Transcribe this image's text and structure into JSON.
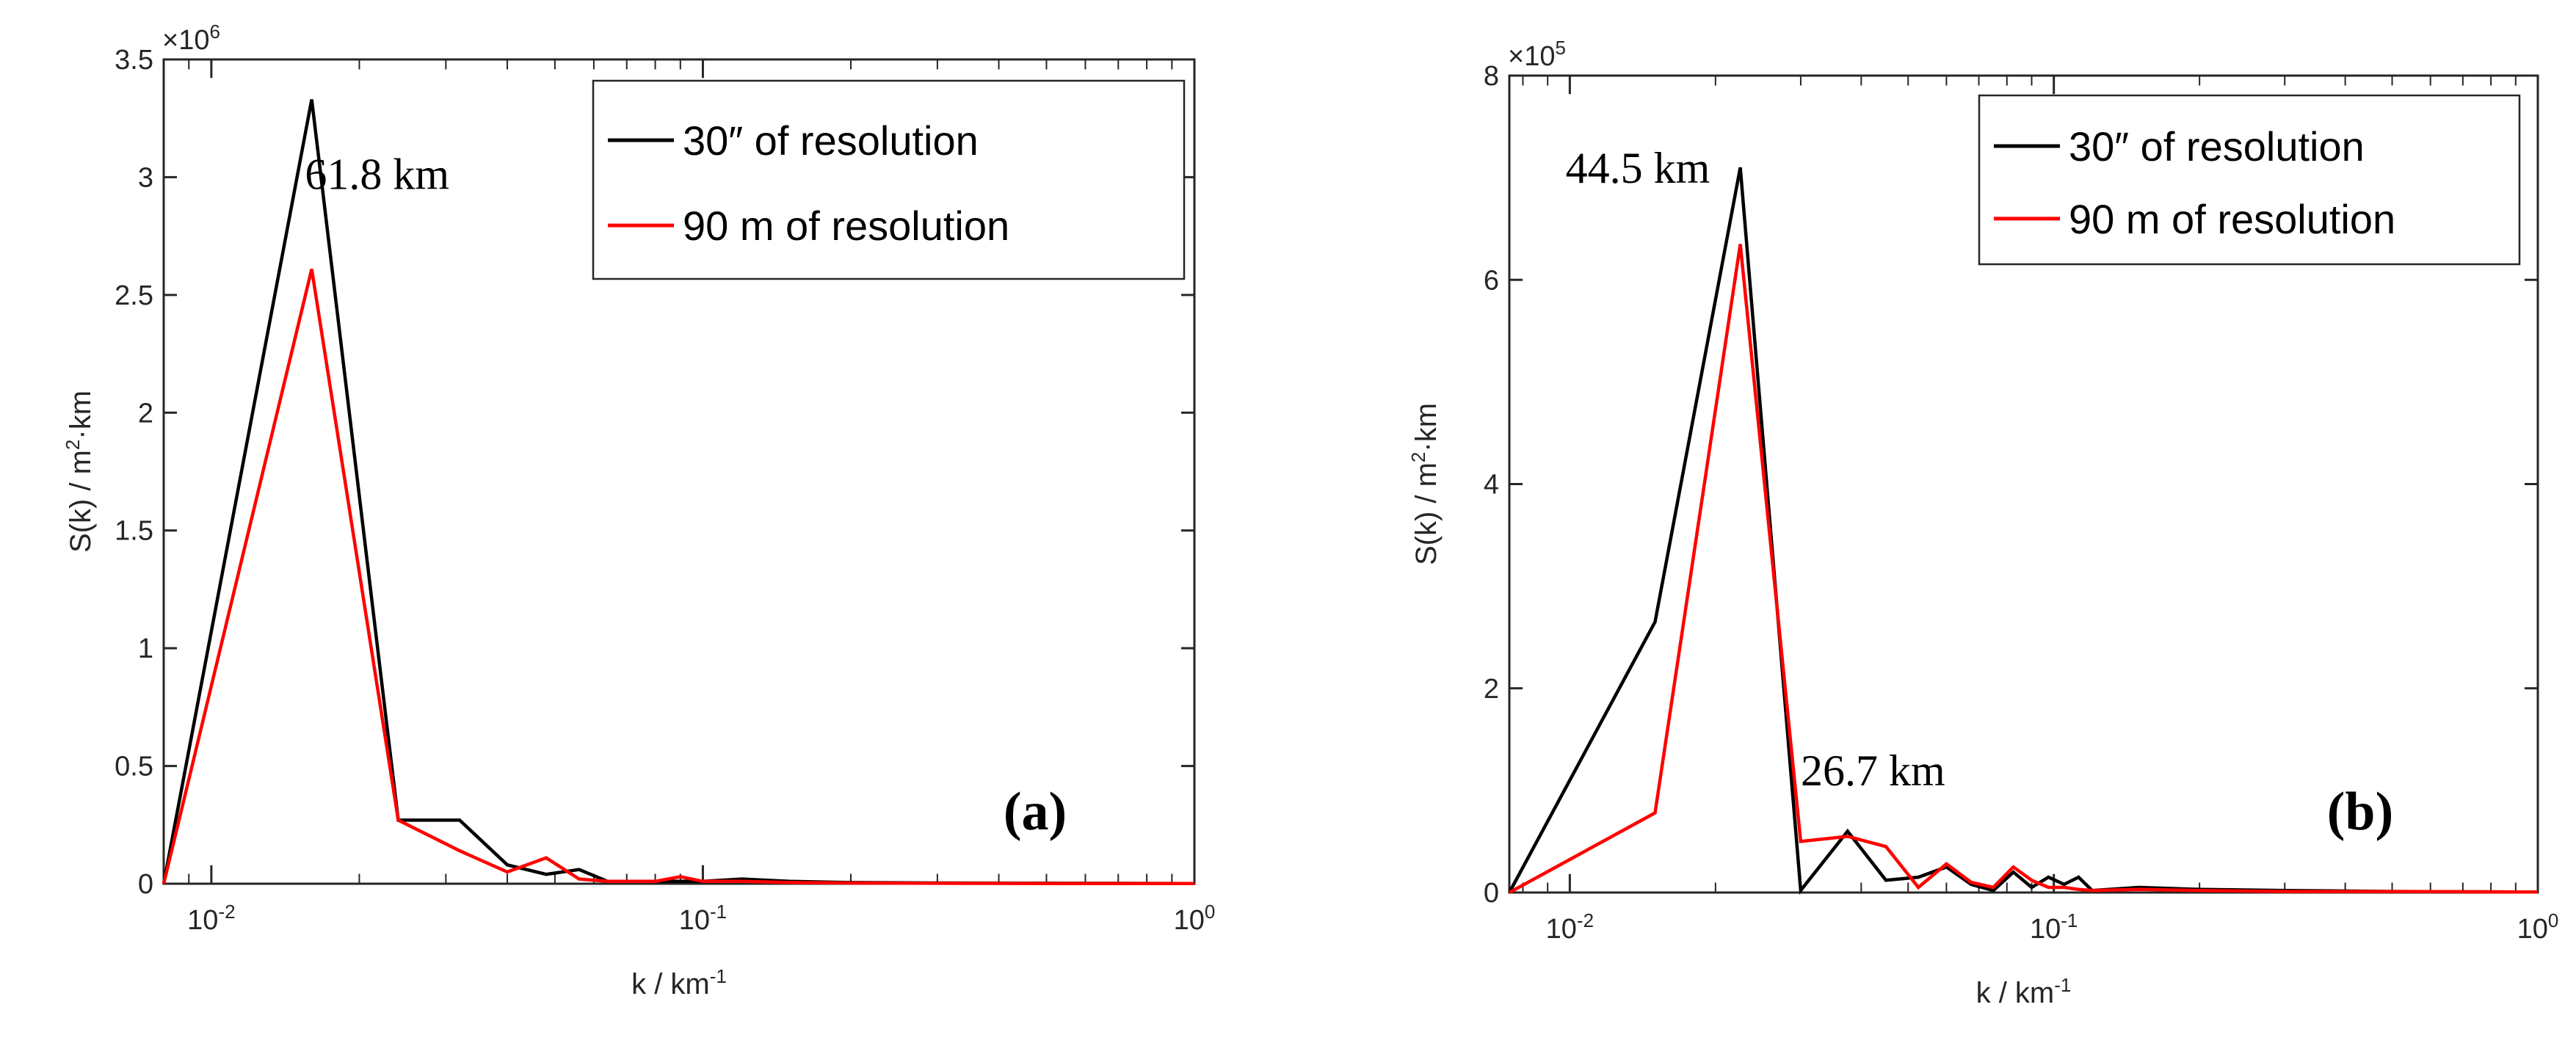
{
  "chart_data": [
    {
      "type": "line",
      "panel_label": "(a)",
      "xscale": "log",
      "xlabel": "k / km",
      "xlabel_sup": "-1",
      "ylabel": "S(k) / m",
      "ylabel_sup": "2",
      "ylabel_tail": "·km",
      "y_multiplier": "×10",
      "y_multiplier_exp": "6",
      "xlim": [
        0.008,
        1
      ],
      "ylim": [
        0,
        3.5
      ],
      "xticks": [
        {
          "value": 0.01,
          "base": "10",
          "exp": "-2"
        },
        {
          "value": 0.1,
          "base": "10",
          "exp": "-1"
        },
        {
          "value": 1,
          "base": "10",
          "exp": "0"
        }
      ],
      "yticks": [
        {
          "value": 0,
          "label": "0"
        },
        {
          "value": 0.5,
          "label": "0.5"
        },
        {
          "value": 1,
          "label": "1"
        },
        {
          "value": 1.5,
          "label": "1.5"
        },
        {
          "value": 2,
          "label": "2"
        },
        {
          "value": 2.5,
          "label": "2.5"
        },
        {
          "value": 3,
          "label": "3"
        },
        {
          "value": 3.5,
          "label": "3.5"
        }
      ],
      "legend_position": "top-right",
      "series": [
        {
          "name": "30″ of resolution",
          "color": "#000000",
          "x": [
            0.008,
            0.016,
            0.024,
            0.032,
            0.04,
            0.048,
            0.056,
            0.064,
            0.08,
            0.1,
            0.12,
            0.15,
            0.2,
            0.3,
            0.5,
            1.0
          ],
          "y": [
            0,
            3.33,
            0.27,
            0.27,
            0.08,
            0.04,
            0.06,
            0.01,
            0.01,
            0.01,
            0.02,
            0.01,
            0.005,
            0.003,
            0.002,
            0.001
          ]
        },
        {
          "name": "90 m of resolution",
          "color": "#ff0000",
          "x": [
            0.008,
            0.016,
            0.024,
            0.032,
            0.04,
            0.048,
            0.056,
            0.064,
            0.08,
            0.09,
            0.1,
            0.12,
            0.15,
            0.2,
            0.3,
            0.5,
            1.0
          ],
          "y": [
            0,
            2.61,
            0.27,
            0.14,
            0.05,
            0.11,
            0.02,
            0.01,
            0.01,
            0.03,
            0.01,
            0.01,
            0.005,
            0.003,
            0.002,
            0.001,
            0.001
          ]
        }
      ],
      "annotations": [
        {
          "text": "61.8 km",
          "x": 0.0155,
          "y": 2.95
        }
      ]
    },
    {
      "type": "line",
      "panel_label": "(b)",
      "xscale": "log",
      "xlabel": "k / km",
      "xlabel_sup": "-1",
      "ylabel": "S(k) / m",
      "ylabel_sup": "2",
      "ylabel_tail": "·km",
      "y_multiplier": "×10",
      "y_multiplier_exp": "5",
      "xlim": [
        0.0075,
        1
      ],
      "ylim": [
        0,
        8
      ],
      "xticks": [
        {
          "value": 0.01,
          "base": "10",
          "exp": "-2"
        },
        {
          "value": 0.1,
          "base": "10",
          "exp": "-1"
        },
        {
          "value": 1,
          "base": "10",
          "exp": "0"
        }
      ],
      "yticks": [
        {
          "value": 0,
          "label": "0"
        },
        {
          "value": 2,
          "label": "2"
        },
        {
          "value": 4,
          "label": "4"
        },
        {
          "value": 6,
          "label": "6"
        },
        {
          "value": 8,
          "label": "8"
        }
      ],
      "legend_position": "top-right",
      "series": [
        {
          "name": "30″ of resolution",
          "color": "#000000",
          "x": [
            0.0075,
            0.015,
            0.0225,
            0.03,
            0.0375,
            0.045,
            0.0525,
            0.06,
            0.0675,
            0.075,
            0.0825,
            0.09,
            0.0975,
            0.105,
            0.1125,
            0.12,
            0.15,
            0.2,
            0.3,
            0.5,
            1.0
          ],
          "y": [
            0,
            2.65,
            7.1,
            0.02,
            0.6,
            0.12,
            0.15,
            0.25,
            0.08,
            0.02,
            0.2,
            0.05,
            0.15,
            0.08,
            0.15,
            0.02,
            0.05,
            0.03,
            0.02,
            0.01,
            0.005
          ]
        },
        {
          "name": "90 m of resolution",
          "color": "#ff0000",
          "x": [
            0.0075,
            0.015,
            0.0225,
            0.03,
            0.0375,
            0.045,
            0.0525,
            0.06,
            0.0675,
            0.075,
            0.0825,
            0.09,
            0.0975,
            0.105,
            0.1125,
            0.12,
            0.15,
            0.2,
            0.3,
            0.5,
            1.0
          ],
          "y": [
            0,
            0.78,
            6.35,
            0.5,
            0.55,
            0.45,
            0.05,
            0.28,
            0.1,
            0.05,
            0.25,
            0.12,
            0.05,
            0.05,
            0.03,
            0.02,
            0.03,
            0.02,
            0.01,
            0.01,
            0.005
          ]
        }
      ],
      "annotations": [
        {
          "text": "44.5 km",
          "x": 0.0098,
          "y": 6.95
        },
        {
          "text": "26.7 km",
          "x": 0.03,
          "y": 1.05
        }
      ]
    }
  ]
}
